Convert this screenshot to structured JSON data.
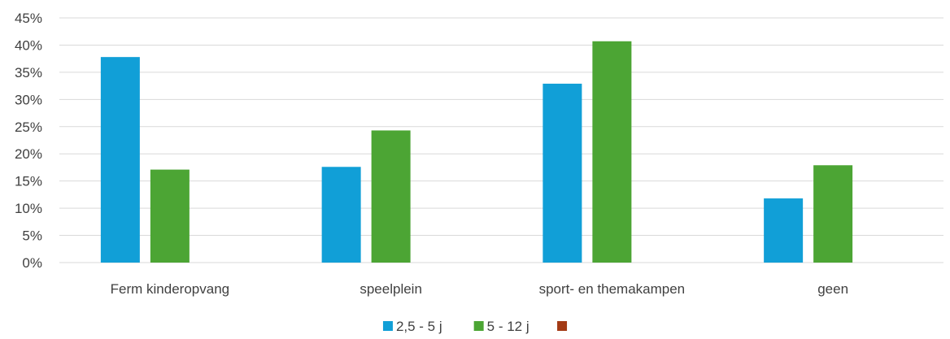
{
  "chart_data": {
    "type": "bar",
    "categories": [
      "Ferm kinderopvang",
      "speelplein",
      "sport- en themakampen",
      "geen"
    ],
    "series": [
      {
        "name": "2,5 - 5 j",
        "color": "#119fd7",
        "values": [
          0.378,
          0.176,
          0.329,
          0.118
        ]
      },
      {
        "name": "5 - 12 j",
        "color": "#4ca534",
        "values": [
          0.171,
          0.243,
          0.407,
          0.179
        ]
      },
      {
        "name": "",
        "color": "#a33a14",
        "values": [
          0,
          0,
          0,
          0
        ]
      }
    ],
    "ylim": [
      0,
      0.45
    ],
    "yticks": [
      "0%",
      "5%",
      "10%",
      "15%",
      "20%",
      "25%",
      "30%",
      "35%",
      "40%",
      "45%"
    ],
    "grid": true,
    "legend": "bottom-center",
    "title": "",
    "xlabel": "",
    "ylabel": ""
  }
}
